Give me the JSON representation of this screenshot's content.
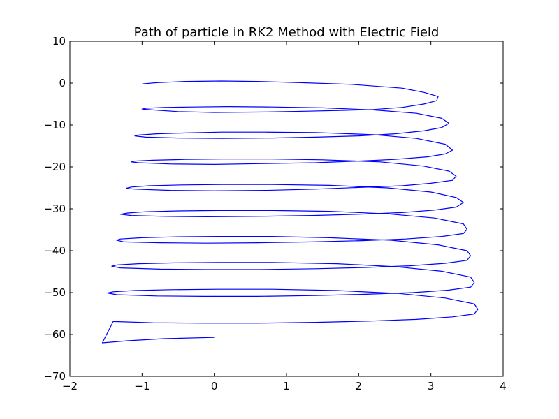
{
  "chart_data": {
    "type": "line",
    "title": "Path of particle in RK2 Method with Electric Field",
    "xlabel": "",
    "ylabel": "",
    "xlim": [
      -2,
      4
    ],
    "ylim": [
      -70,
      10
    ],
    "x_ticks": [
      "−2",
      "−1",
      "0",
      "1",
      "2",
      "3",
      "4"
    ],
    "y_ticks": [
      "10",
      "0",
      "−10",
      "−20",
      "−30",
      "−40",
      "−50",
      "−60",
      "−70"
    ],
    "x_tick_values": [
      -2,
      -1,
      0,
      1,
      2,
      3,
      4
    ],
    "y_tick_values": [
      10,
      0,
      -10,
      -20,
      -30,
      -40,
      -50,
      -60,
      -70
    ],
    "grid": false,
    "line_color": "#0000ff",
    "series": [
      {
        "x": [
          -1.0,
          -0.8,
          -0.4,
          0.1,
          0.6,
          1.2,
          1.9,
          2.6,
          2.9,
          3.1,
          3.08,
          2.9,
          2.6,
          2.2,
          1.8,
          1.3,
          0.7,
          0.0,
          -0.5,
          -0.85,
          -1.0,
          -0.95,
          -0.7,
          -0.3,
          0.2,
          0.8,
          1.5,
          2.2,
          2.8,
          3.15,
          3.25,
          3.15,
          2.9,
          2.5,
          2.0,
          1.4,
          0.8,
          0.1,
          -0.5,
          -0.95,
          -1.1,
          -1.05,
          -0.8,
          -0.4,
          0.1,
          0.7,
          1.4,
          2.2,
          2.8,
          3.2,
          3.3,
          3.2,
          2.95,
          2.5,
          2.0,
          1.4,
          0.7,
          0.0,
          -0.6,
          -1.05,
          -1.15,
          -1.1,
          -0.85,
          -0.4,
          0.1,
          0.8,
          1.5,
          2.3,
          2.9,
          3.25,
          3.35,
          3.3,
          3.0,
          2.6,
          2.0,
          1.4,
          0.7,
          0.0,
          -0.6,
          -1.1,
          -1.22,
          -1.15,
          -0.9,
          -0.45,
          0.1,
          0.8,
          1.6,
          2.4,
          3.0,
          3.35,
          3.45,
          3.35,
          3.05,
          2.6,
          2.0,
          1.35,
          0.6,
          -0.1,
          -0.7,
          -1.15,
          -1.3,
          -1.2,
          -0.95,
          -0.5,
          0.05,
          0.8,
          1.6,
          2.4,
          3.05,
          3.45,
          3.5,
          3.45,
          3.15,
          2.65,
          2.05,
          1.35,
          0.6,
          -0.1,
          -0.75,
          -1.25,
          -1.35,
          -1.3,
          -1.0,
          -0.55,
          0.05,
          0.8,
          1.6,
          2.45,
          3.1,
          3.5,
          3.55,
          3.5,
          3.2,
          2.7,
          2.1,
          1.4,
          0.6,
          -0.1,
          -0.75,
          -1.3,
          -1.42,
          -1.35,
          -1.05,
          -0.55,
          0.05,
          0.8,
          1.7,
          2.5,
          3.15,
          3.55,
          3.6,
          3.55,
          3.25,
          2.75,
          2.1,
          1.4,
          0.6,
          -0.15,
          -0.8,
          -1.35,
          -1.48,
          -1.4,
          -1.1,
          -0.6,
          0.05,
          0.8,
          1.7,
          2.55,
          3.2,
          3.6,
          3.65,
          3.6,
          3.3,
          2.8,
          2.15,
          1.4,
          0.6,
          -0.15,
          -0.85,
          -1.4,
          -1.55,
          -1.2,
          -0.7,
          0.0
        ],
        "y": [
          -0.2,
          0.1,
          0.4,
          0.5,
          0.4,
          0.1,
          -0.3,
          -1.2,
          -2.2,
          -3.2,
          -4.2,
          -5.0,
          -5.8,
          -6.3,
          -6.5,
          -6.7,
          -6.9,
          -7.0,
          -6.8,
          -6.4,
          -6.2,
          -6.0,
          -5.8,
          -5.7,
          -5.6,
          -5.7,
          -5.9,
          -6.4,
          -7.2,
          -8.4,
          -9.6,
          -10.6,
          -11.4,
          -12.1,
          -12.6,
          -12.9,
          -13.1,
          -13.2,
          -13.1,
          -12.9,
          -12.6,
          -12.4,
          -12.1,
          -11.9,
          -11.7,
          -11.7,
          -11.8,
          -12.3,
          -13.2,
          -14.6,
          -16.0,
          -16.9,
          -17.6,
          -18.2,
          -18.6,
          -19.0,
          -19.2,
          -19.4,
          -19.3,
          -19.0,
          -18.8,
          -18.6,
          -18.4,
          -18.2,
          -18.1,
          -18.1,
          -18.3,
          -18.8,
          -19.8,
          -21.0,
          -22.2,
          -23.2,
          -23.9,
          -24.5,
          -24.9,
          -25.3,
          -25.6,
          -25.7,
          -25.6,
          -25.3,
          -25.1,
          -24.8,
          -24.5,
          -24.3,
          -24.2,
          -24.2,
          -24.4,
          -25.0,
          -26.0,
          -27.3,
          -28.5,
          -29.6,
          -30.3,
          -30.9,
          -31.3,
          -31.6,
          -31.8,
          -31.9,
          -31.8,
          -31.6,
          -31.3,
          -31.0,
          -30.7,
          -30.5,
          -30.4,
          -30.4,
          -30.6,
          -31.2,
          -32.2,
          -33.6,
          -34.9,
          -35.9,
          -36.6,
          -37.2,
          -37.6,
          -37.9,
          -38.1,
          -38.2,
          -38.1,
          -37.9,
          -37.5,
          -37.2,
          -36.9,
          -36.7,
          -36.6,
          -36.6,
          -36.9,
          -37.5,
          -38.6,
          -40.0,
          -41.2,
          -42.3,
          -43.0,
          -43.6,
          -44.0,
          -44.3,
          -44.5,
          -44.5,
          -44.4,
          -44.1,
          -43.7,
          -43.4,
          -43.1,
          -42.9,
          -42.8,
          -42.8,
          -43.1,
          -43.8,
          -44.9,
          -46.3,
          -47.6,
          -48.7,
          -49.4,
          -50.0,
          -50.4,
          -50.7,
          -50.9,
          -50.9,
          -50.8,
          -50.5,
          -50.1,
          -49.8,
          -49.5,
          -49.3,
          -49.2,
          -49.2,
          -49.5,
          -50.2,
          -51.3,
          -52.7,
          -54.0,
          -55.1,
          -55.8,
          -56.4,
          -56.8,
          -57.1,
          -57.3,
          -57.3,
          -57.2,
          -56.9,
          -62.0,
          -61.5,
          -61.0,
          -60.7
        ]
      }
    ]
  }
}
